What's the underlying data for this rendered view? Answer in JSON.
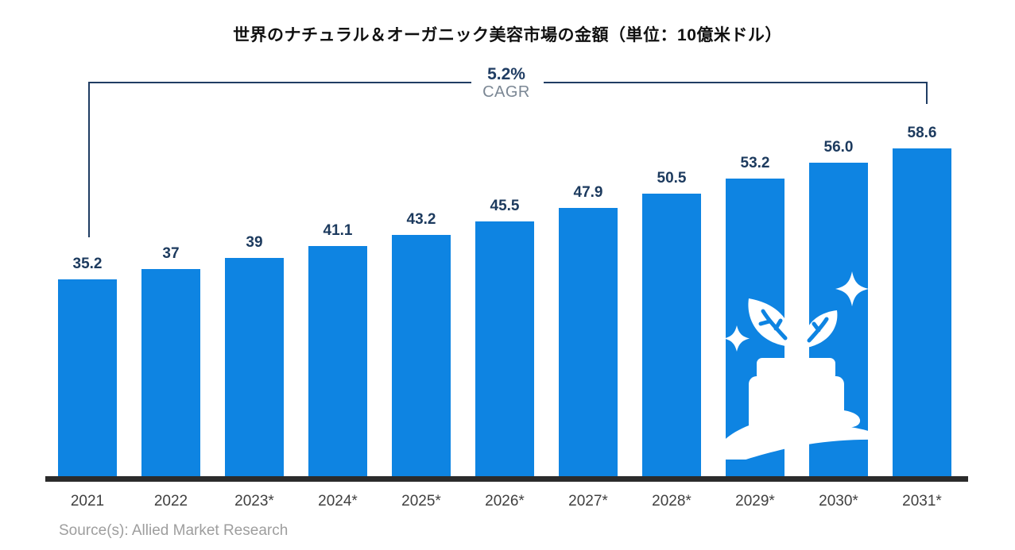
{
  "chart_data": {
    "type": "bar",
    "title": "世界のナチュラル＆オーガニック美容市場の金額（単位：10億米ドル）",
    "categories": [
      "2021",
      "2022",
      "2023*",
      "2024*",
      "2025*",
      "2026*",
      "2027*",
      "2028*",
      "2029*",
      "2030*",
      "2031*"
    ],
    "values": [
      35.2,
      37,
      39,
      41.1,
      43.2,
      45.5,
      47.9,
      50.5,
      53.2,
      56.0,
      58.6
    ],
    "value_labels": [
      "35.2",
      "37",
      "39",
      "41.1",
      "43.2",
      "45.5",
      "47.9",
      "50.5",
      "53.2",
      "56.0",
      "58.6"
    ],
    "xlabel": "",
    "ylabel": "",
    "ylim": [
      0,
      60
    ],
    "grid": false,
    "legend": "none",
    "bar_color": "#0e84e2",
    "value_label_color": "#1c3a5e",
    "axis_color": "#2b2b2b",
    "annotation": {
      "cagr_value": "5.2%",
      "cagr_label": "CAGR",
      "bracket_color": "#203d63",
      "span": "2021 to 2031*"
    },
    "source": "Source(s): Allied Market Research",
    "overlay_icon": "hand-holding-cream-jar-with-sprout-and-sparkles",
    "overlay_icon_color": "#ffffff"
  }
}
